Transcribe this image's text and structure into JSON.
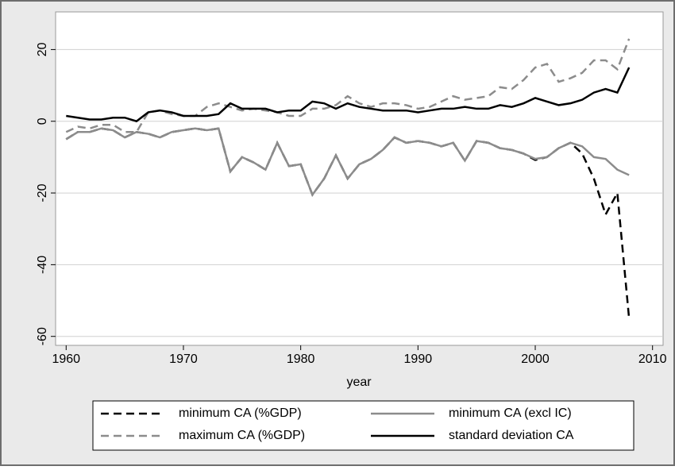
{
  "chart_data": {
    "type": "line",
    "x_label": "year",
    "x": [
      1960,
      1961,
      1962,
      1963,
      1964,
      1965,
      1966,
      1967,
      1968,
      1969,
      1970,
      1971,
      1972,
      1973,
      1974,
      1975,
      1976,
      1977,
      1978,
      1979,
      1980,
      1981,
      1982,
      1983,
      1984,
      1985,
      1986,
      1987,
      1988,
      1989,
      1990,
      1991,
      1992,
      1993,
      1994,
      1995,
      1996,
      1997,
      1998,
      1999,
      2000,
      2001,
      2002,
      2003,
      2004,
      2005,
      2006,
      2007,
      2008
    ],
    "series": [
      {
        "name": "minimum CA (%GDP)",
        "color": "#000000",
        "line_style": "dashed",
        "values": [
          -5,
          -3,
          -3,
          -2,
          -2.5,
          -4.5,
          -3,
          -3.5,
          -4.5,
          -3,
          -2.5,
          -2,
          -2.5,
          -2,
          -14,
          -10,
          -11.5,
          -13.5,
          -6,
          -12.5,
          -12,
          -20.5,
          -16,
          -9.5,
          -16,
          -12,
          -10.5,
          -8,
          -4.5,
          -6,
          -5.5,
          -6,
          -7,
          -6,
          -11,
          -5.5,
          -6,
          -7.5,
          -8,
          -9,
          -10.8,
          -10,
          -7.5,
          -6,
          -9,
          -16,
          -26,
          -20,
          -55
        ]
      },
      {
        "name": "minimum CA (excl IC)",
        "color": "#8c8c8c",
        "line_style": "solid",
        "values": [
          -5,
          -3,
          -3,
          -2,
          -2.5,
          -4.5,
          -3,
          -3.5,
          -4.5,
          -3,
          -2.5,
          -2,
          -2.5,
          -2,
          -14,
          -10,
          -11.5,
          -13.5,
          -6,
          -12.5,
          -12,
          -20.5,
          -16,
          -9.5,
          -16,
          -12,
          -10.5,
          -8,
          -4.5,
          -6,
          -5.5,
          -6,
          -7,
          -6,
          -11,
          -5.5,
          -6,
          -7.5,
          -8,
          -9,
          -10.5,
          -10,
          -7.5,
          -6,
          -7,
          -10,
          -10.5,
          -13.5,
          -15
        ]
      },
      {
        "name": "maximum CA (%GDP)",
        "color": "#8c8c8c",
        "line_style": "dashed",
        "values": [
          -3,
          -1.5,
          -2,
          -1,
          -1,
          -3,
          -3,
          2.5,
          3,
          2,
          1.5,
          1.5,
          4,
          5,
          4,
          3,
          3.5,
          3,
          2.5,
          1.5,
          1.5,
          3.5,
          3.5,
          4.5,
          7,
          5,
          4,
          5,
          5,
          4.5,
          3.5,
          4,
          5.5,
          7,
          6,
          6.5,
          7,
          9.5,
          9,
          11.5,
          15,
          16,
          11,
          12,
          13.5,
          17,
          17,
          14.5,
          23
        ]
      },
      {
        "name": "standard deviation CA",
        "color": "#000000",
        "line_style": "solid",
        "values": [
          1.5,
          1,
          0.5,
          0.5,
          1,
          1,
          0,
          2.5,
          3,
          2.5,
          1.5,
          1.5,
          1.5,
          2,
          5,
          3.5,
          3.5,
          3.5,
          2.5,
          3,
          3,
          5.5,
          5,
          3.5,
          5,
          4,
          3.5,
          3,
          3,
          3,
          2.5,
          3,
          3.5,
          3.5,
          4,
          3.5,
          3.5,
          4.5,
          4,
          5,
          6.5,
          5.5,
          4.5,
          5,
          6,
          8,
          9,
          8,
          15
        ]
      }
    ],
    "xlim": [
      1959.1,
      2010.9
    ],
    "xticks": [
      1960,
      1970,
      1980,
      1990,
      2000,
      2010
    ],
    "ylim": [
      -62.5,
      30.5
    ],
    "yticks": [
      -60,
      -40,
      -20,
      0,
      20
    ],
    "grid": true,
    "legend_position": "bottom"
  }
}
